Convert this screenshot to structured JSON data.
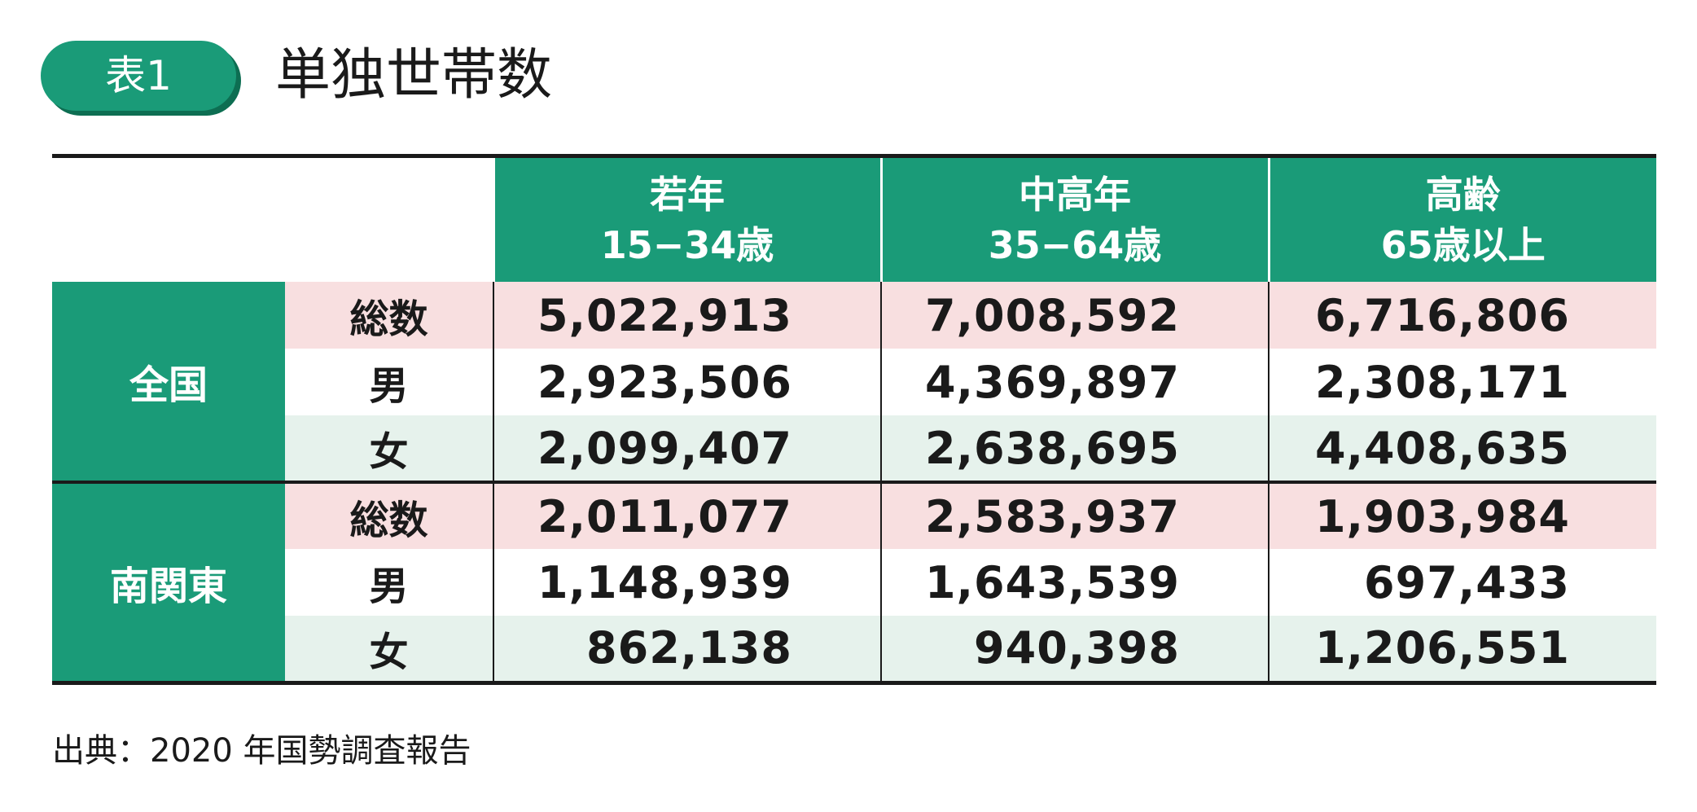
{
  "header": {
    "badge": "表1",
    "title": "単独世帯数"
  },
  "table": {
    "columns": [
      {
        "line1": "若年",
        "line2": "15−34歳"
      },
      {
        "line1": "中高年",
        "line2": "35−64歳"
      },
      {
        "line1": "高齢",
        "line2": "65歳以上"
      }
    ],
    "groups": [
      {
        "region": "全国",
        "rows": [
          {
            "label": "総数",
            "values": [
              "5,022,913",
              "7,008,592",
              "6,716,806"
            ]
          },
          {
            "label": "男",
            "values": [
              "2,923,506",
              "4,369,897",
              "2,308,171"
            ]
          },
          {
            "label": "女",
            "values": [
              "2,099,407",
              "2,638,695",
              "4,408,635"
            ]
          }
        ]
      },
      {
        "region": "南関東",
        "rows": [
          {
            "label": "総数",
            "values": [
              "2,011,077",
              "2,583,937",
              "1,903,984"
            ]
          },
          {
            "label": "男",
            "values": [
              "1,148,939",
              "1,643,539",
              "697,433"
            ]
          },
          {
            "label": "女",
            "values": [
              "862,138",
              "940,398",
              "1,206,551"
            ]
          }
        ]
      }
    ]
  },
  "footer": {
    "source": "出典：2020 年国勢調査報告"
  },
  "colors": {
    "accent_green": "#1a9b78",
    "total_row_pink": "#f8dfe0",
    "female_row_mint": "#e6f2ec"
  }
}
